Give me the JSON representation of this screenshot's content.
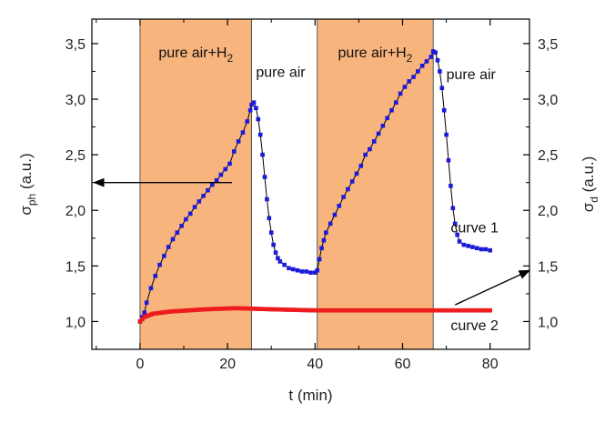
{
  "chart_data": {
    "type": "scatter",
    "x_axis": {
      "label": "t (min)",
      "range": [
        -11,
        89
      ],
      "ticks": [
        0,
        20,
        40,
        60,
        80
      ],
      "tick_labels": [
        "0",
        "20",
        "40",
        "60",
        "80"
      ]
    },
    "y_axis_left": {
      "label_symbol": "σ",
      "label_sub": "ph",
      "label_unit": "(a.u.)",
      "range": [
        0.75,
        3.72
      ],
      "ticks": [
        1.0,
        1.5,
        2.0,
        2.5,
        3.0,
        3.5
      ],
      "tick_labels": [
        "1,0",
        "1,5",
        "2,0",
        "2,5",
        "3,0",
        "3,5"
      ]
    },
    "y_axis_right": {
      "label_symbol": "σ",
      "label_sub": "d",
      "label_unit": "(a.u.)",
      "range": [
        0.75,
        3.72
      ],
      "ticks": [
        1.0,
        1.5,
        2.0,
        2.5,
        3.0,
        3.5
      ],
      "tick_labels": [
        "1,0",
        "1,5",
        "2,0",
        "2,5",
        "3,0",
        "3,5"
      ]
    },
    "shaded_regions": [
      {
        "x_start": 0,
        "x_end": 25.5,
        "label_main": "pure air+H",
        "label_sub": "2",
        "color": "#f8b47d"
      },
      {
        "x_start": 40.5,
        "x_end": 67,
        "label_main": "pure air+H",
        "label_sub": "2",
        "color": "#f8b47d"
      }
    ],
    "region_labels": [
      {
        "text": "pure air",
        "x": 26.5,
        "y": 3.2
      },
      {
        "text": "pure air",
        "x": 70,
        "y": 3.18
      }
    ],
    "series": [
      {
        "name": "curve 1",
        "color": "#1a1adb",
        "line_color": "#000000",
        "marker": "square",
        "points": [
          [
            0,
            1.0
          ],
          [
            0.5,
            1.04
          ],
          [
            1.0,
            1.08
          ],
          [
            1.5,
            1.17
          ],
          [
            2.5,
            1.3
          ],
          [
            3.5,
            1.41
          ],
          [
            4.5,
            1.51
          ],
          [
            5.5,
            1.59
          ],
          [
            6.5,
            1.67
          ],
          [
            7.5,
            1.74
          ],
          [
            8.5,
            1.8
          ],
          [
            9.5,
            1.86
          ],
          [
            10.5,
            1.92
          ],
          [
            11.5,
            1.97
          ],
          [
            12.5,
            2.03
          ],
          [
            13.5,
            2.08
          ],
          [
            14.5,
            2.13
          ],
          [
            15.5,
            2.18
          ],
          [
            16.5,
            2.23
          ],
          [
            17.5,
            2.27
          ],
          [
            18.5,
            2.32
          ],
          [
            19.5,
            2.37
          ],
          [
            20.5,
            2.42
          ],
          [
            21.5,
            2.53
          ],
          [
            22.5,
            2.62
          ],
          [
            23.5,
            2.7
          ],
          [
            24.5,
            2.8
          ],
          [
            25.2,
            2.9
          ],
          [
            25.5,
            2.95
          ],
          [
            26.0,
            2.97
          ],
          [
            26.5,
            2.92
          ],
          [
            27.0,
            2.82
          ],
          [
            27.5,
            2.68
          ],
          [
            28.0,
            2.5
          ],
          [
            28.5,
            2.3
          ],
          [
            29.0,
            2.1
          ],
          [
            29.5,
            1.93
          ],
          [
            30.0,
            1.8
          ],
          [
            30.5,
            1.69
          ],
          [
            31.0,
            1.62
          ],
          [
            31.5,
            1.57
          ],
          [
            32.0,
            1.54
          ],
          [
            33.0,
            1.51
          ],
          [
            34.0,
            1.48
          ],
          [
            35.0,
            1.47
          ],
          [
            36.0,
            1.46
          ],
          [
            37.0,
            1.45
          ],
          [
            38.0,
            1.45
          ],
          [
            39.0,
            1.44
          ],
          [
            40.0,
            1.44
          ],
          [
            40.5,
            1.46
          ],
          [
            41.0,
            1.56
          ],
          [
            41.5,
            1.66
          ],
          [
            42.0,
            1.73
          ],
          [
            42.5,
            1.8
          ],
          [
            43.5,
            1.88
          ],
          [
            44.5,
            1.96
          ],
          [
            45.5,
            2.04
          ],
          [
            46.5,
            2.12
          ],
          [
            47.5,
            2.19
          ],
          [
            48.5,
            2.26
          ],
          [
            49.5,
            2.33
          ],
          [
            50.5,
            2.4
          ],
          [
            51.5,
            2.5
          ],
          [
            52.5,
            2.55
          ],
          [
            53.5,
            2.62
          ],
          [
            54.5,
            2.69
          ],
          [
            55.5,
            2.76
          ],
          [
            56.5,
            2.83
          ],
          [
            57.5,
            2.9
          ],
          [
            58.5,
            2.97
          ],
          [
            59.5,
            3.05
          ],
          [
            60.5,
            3.11
          ],
          [
            61.5,
            3.16
          ],
          [
            62.5,
            3.2
          ],
          [
            63.5,
            3.25
          ],
          [
            64.5,
            3.3
          ],
          [
            65.5,
            3.34
          ],
          [
            66.5,
            3.38
          ],
          [
            67.0,
            3.43
          ],
          [
            67.5,
            3.42
          ],
          [
            68.0,
            3.35
          ],
          [
            68.5,
            3.25
          ],
          [
            69.0,
            3.1
          ],
          [
            69.5,
            2.9
          ],
          [
            70.0,
            2.68
          ],
          [
            70.5,
            2.45
          ],
          [
            71.0,
            2.22
          ],
          [
            71.5,
            2.02
          ],
          [
            72.0,
            1.88
          ],
          [
            72.5,
            1.78
          ],
          [
            73.0,
            1.72
          ],
          [
            74.0,
            1.69
          ],
          [
            75.0,
            1.68
          ],
          [
            76.0,
            1.67
          ],
          [
            77.0,
            1.66
          ],
          [
            78.0,
            1.65
          ],
          [
            79.0,
            1.65
          ],
          [
            80.0,
            1.64
          ]
        ]
      },
      {
        "name": "curve 2",
        "color": "#ee1c1c",
        "marker": "square",
        "x_start": 0,
        "x_end": 80,
        "x_step": 0.5,
        "profile": [
          [
            0,
            1.0
          ],
          [
            1,
            1.04
          ],
          [
            3,
            1.07
          ],
          [
            7,
            1.09
          ],
          [
            15,
            1.11
          ],
          [
            22,
            1.12
          ],
          [
            30,
            1.11
          ],
          [
            40,
            1.1
          ],
          [
            60,
            1.1
          ],
          [
            80,
            1.1
          ]
        ]
      }
    ],
    "annotations": [
      {
        "text": "curve 1",
        "x": 71,
        "y": 1.8
      },
      {
        "text": "curve 2",
        "x": 71,
        "y": 0.92
      }
    ],
    "arrows": [
      {
        "from": [
          21,
          2.25
        ],
        "to": [
          -10.5,
          2.25
        ],
        "points_to": "left-axis"
      },
      {
        "from": [
          72,
          1.15
        ],
        "to": [
          89,
          1.46
        ],
        "points_to": "right-axis"
      }
    ],
    "grid": false,
    "legend": "none"
  }
}
